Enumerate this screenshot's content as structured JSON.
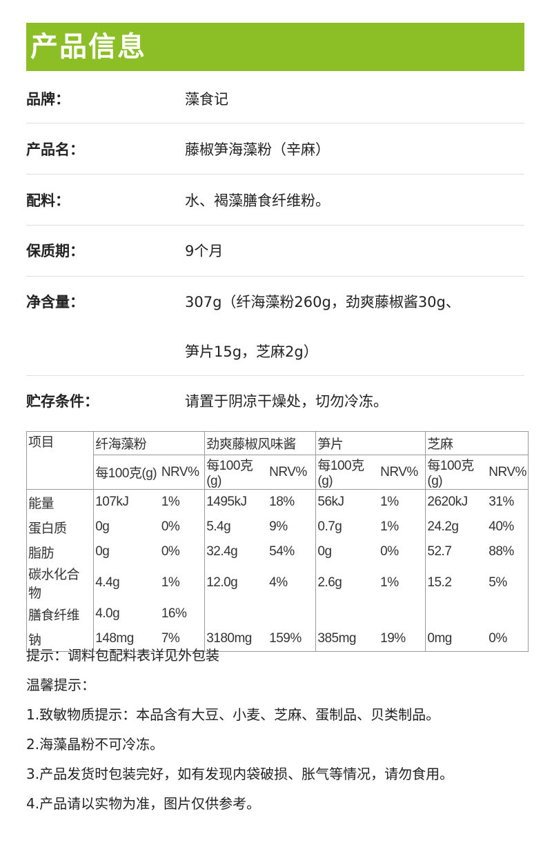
{
  "header": {
    "title": "产品信息",
    "color": "#8cbf26"
  },
  "info": [
    {
      "label": "品牌：",
      "value": "藻食记"
    },
    {
      "label": "产品名：",
      "value": "藤椒笋海藻粉（辛麻）"
    },
    {
      "label": "配料：",
      "value": "水、褐藻膳食纤维粉。"
    },
    {
      "label": "保质期：",
      "value": "9个月"
    },
    {
      "label": "净含量：",
      "value": "307g（纤海藻粉260g，劲爽藤椒酱30g、",
      "value2": "笋片15g，芝麻2g）"
    },
    {
      "label": "贮存条件：",
      "value": "请置于阴凉干燥处，切勿冷冻。"
    }
  ],
  "nutrition": {
    "item_header": "项目",
    "products": [
      "纤海藻粉",
      "劲爽藤椒风味酱",
      "笋片",
      "芝麻"
    ],
    "sub_headers": [
      "每100克(g)",
      "NRV%"
    ],
    "rows": [
      {
        "name": "能量",
        "values": [
          [
            "107kJ",
            "1%"
          ],
          [
            "1495kJ",
            "18%"
          ],
          [
            "56kJ",
            "1%"
          ],
          [
            "2620kJ",
            "31%"
          ]
        ]
      },
      {
        "name": "蛋白质",
        "values": [
          [
            "0g",
            "0%"
          ],
          [
            "5.4g",
            "9%"
          ],
          [
            "0.7g",
            "1%"
          ],
          [
            "24.2g",
            "40%"
          ]
        ]
      },
      {
        "name": "脂肪",
        "values": [
          [
            "0g",
            "0%"
          ],
          [
            "32.4g",
            "54%"
          ],
          [
            "0g",
            "0%"
          ],
          [
            "52.7",
            "88%"
          ]
        ]
      },
      {
        "name": "碳水化合物",
        "values": [
          [
            "4.4g",
            "1%"
          ],
          [
            "12.0g",
            "4%"
          ],
          [
            "2.6g",
            "1%"
          ],
          [
            "15.2",
            "5%"
          ]
        ]
      },
      {
        "name": "膳食纤维",
        "values": [
          [
            "4.0g",
            "16%"
          ],
          [
            "",
            ""
          ],
          [
            "",
            ""
          ],
          [
            "",
            ""
          ]
        ]
      },
      {
        "name": "钠",
        "values": [
          [
            "148mg",
            "7%"
          ],
          [
            "3180mg",
            "159%"
          ],
          [
            "385mg",
            "19%"
          ],
          [
            "0mg",
            "0%"
          ]
        ]
      }
    ]
  },
  "notes": [
    "提示：调料包配料表详见外包装",
    "温馨提示：",
    "1.致敏物质提示：本品含有大豆、小麦、芝麻、蛋制品、贝类制品。",
    "2.海藻晶粉不可冷冻。",
    "3.产品发货时包装完好，如有发现内袋破损、胀气等情况，请勿食用。",
    "4.产品请以实物为准，图片仅供参考。"
  ]
}
